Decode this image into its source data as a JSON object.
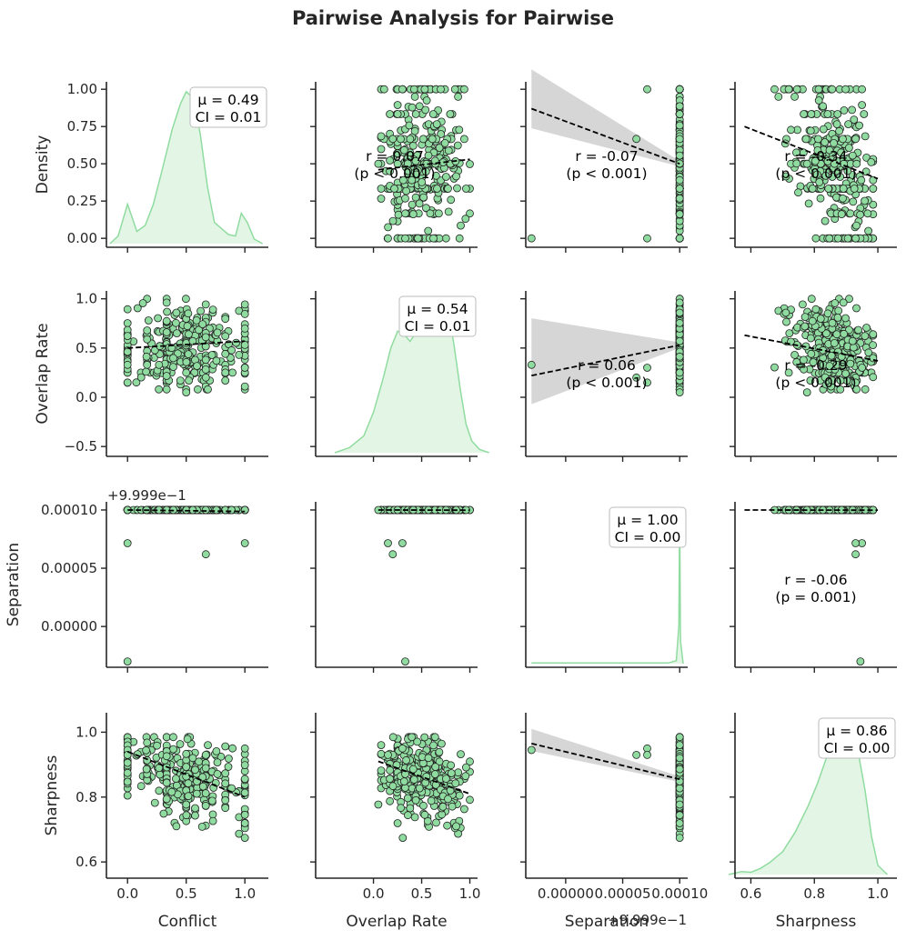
{
  "chart_data": {
    "type": "scatter",
    "title": "Pairwise Analysis for Pairwise",
    "variables": [
      "Conflict",
      "Overlap Rate",
      "Separation",
      "Sharpness"
    ],
    "variable_labels": [
      "Density",
      "Overlap Rate",
      "Separation",
      "Sharpness"
    ],
    "ranges": {
      "Conflict": [
        -0.18,
        1.2
      ],
      "Overlap Rate": [
        -0.6,
        1.08
      ],
      "Separation": [
        -3.5e-05,
        0.000107
      ],
      "Sharpness": [
        0.55,
        1.06
      ]
    },
    "y_ticks": {
      "Density": [
        {
          "v": 0.0,
          "label": "0.00"
        },
        {
          "v": 0.25,
          "label": "0.25"
        },
        {
          "v": 0.5,
          "label": "0.50"
        },
        {
          "v": 0.75,
          "label": "0.75"
        },
        {
          "v": 1.0,
          "label": "1.00"
        }
      ],
      "Overlap Rate": [
        {
          "v": -0.5,
          "label": "−0.5"
        },
        {
          "v": 0.0,
          "label": "0.0"
        },
        {
          "v": 0.5,
          "label": "0.5"
        },
        {
          "v": 1.0,
          "label": "1.0"
        }
      ],
      "Separation": [
        {
          "v": 0.0,
          "label": "0.00000"
        },
        {
          "v": 5e-05,
          "label": "0.00005"
        },
        {
          "v": 0.0001,
          "label": "0.00010"
        }
      ],
      "Sharpness": [
        {
          "v": 0.6,
          "label": "0.6"
        },
        {
          "v": 0.8,
          "label": "0.8"
        },
        {
          "v": 1.0,
          "label": "1.0"
        }
      ]
    },
    "x_ticks": {
      "Conflict": [
        {
          "v": 0.0,
          "label": "0.0"
        },
        {
          "v": 0.5,
          "label": "0.5"
        },
        {
          "v": 1.0,
          "label": "1.0"
        }
      ],
      "Overlap Rate": [
        {
          "v": 0.0,
          "label": "0.0"
        },
        {
          "v": 0.5,
          "label": "0.5"
        },
        {
          "v": 1.0,
          "label": "1.0"
        }
      ],
      "Separation": [
        {
          "v": 0.0,
          "label": "0.00000"
        },
        {
          "v": 5e-05,
          "label": "0.00005"
        },
        {
          "v": 0.0001,
          "label": "0.00010"
        }
      ],
      "Sharpness": [
        {
          "v": 0.6,
          "label": "0.6"
        },
        {
          "v": 0.8,
          "label": "0.8"
        },
        {
          "v": 1.0,
          "label": "1.0"
        }
      ]
    },
    "offset_text": "+9.999e−1",
    "diagonal_stats": [
      {
        "variable": "Conflict",
        "mean_label": "μ = 0.49",
        "ci_label": "CI = 0.01"
      },
      {
        "variable": "Overlap Rate",
        "mean_label": "μ = 0.54",
        "ci_label": "CI = 0.01"
      },
      {
        "variable": "Separation",
        "mean_label": "μ = 1.00",
        "ci_label": "CI = 0.00"
      },
      {
        "variable": "Sharpness",
        "mean_label": "μ = 0.86",
        "ci_label": "CI = 0.00"
      }
    ],
    "correlations": [
      {
        "row": "Conflict",
        "col": "Overlap Rate",
        "r_label": "r = 0.07",
        "p_label": "(p < 0.001)"
      },
      {
        "row": "Conflict",
        "col": "Separation",
        "r_label": "r = -0.07",
        "p_label": "(p < 0.001)"
      },
      {
        "row": "Conflict",
        "col": "Sharpness",
        "r_label": "r = -0.34",
        "p_label": "(p < 0.001)"
      },
      {
        "row": "Overlap Rate",
        "col": "Separation",
        "r_label": "r = 0.06",
        "p_label": "(p < 0.001)"
      },
      {
        "row": "Overlap Rate",
        "col": "Sharpness",
        "r_label": "r = -0.29",
        "p_label": "(p < 0.001)"
      },
      {
        "row": "Separation",
        "col": "Sharpness",
        "r_label": "r = -0.06",
        "p_label": "(p = 0.001)"
      }
    ],
    "regression_lines": [
      {
        "row": "Density",
        "col": "Overlap Rate",
        "x": [
          0.05,
          1.0
        ],
        "y": [
          0.46,
          0.53
        ]
      },
      {
        "row": "Density",
        "col": "Separation",
        "x": [
          -3e-05,
          0.0001
        ],
        "y": [
          0.87,
          0.5
        ]
      },
      {
        "row": "Density",
        "col": "Sharpness",
        "x": [
          0.58,
          1.0
        ],
        "y": [
          0.75,
          0.4
        ]
      },
      {
        "row": "Overlap Rate",
        "col": "Conflict",
        "x": [
          0.0,
          1.0
        ],
        "y": [
          0.5,
          0.57
        ]
      },
      {
        "row": "Overlap Rate",
        "col": "Separation",
        "x": [
          -3e-05,
          0.0001
        ],
        "y": [
          0.22,
          0.53
        ]
      },
      {
        "row": "Overlap Rate",
        "col": "Sharpness",
        "x": [
          0.58,
          1.0
        ],
        "y": [
          0.63,
          0.37
        ]
      },
      {
        "row": "Separation",
        "col": "Conflict",
        "x": [
          0.0,
          1.0
        ],
        "y": [
          0.0001,
          9.87e-05
        ]
      },
      {
        "row": "Separation",
        "col": "Overlap Rate",
        "x": [
          0.05,
          1.0
        ],
        "y": [
          0.0001,
          9.98e-05
        ]
      },
      {
        "row": "Separation",
        "col": "Sharpness",
        "x": [
          0.58,
          1.0
        ],
        "y": [
          0.0001,
          9.98e-05
        ]
      },
      {
        "row": "Sharpness",
        "col": "Conflict",
        "x": [
          0.0,
          1.0
        ],
        "y": [
          0.94,
          0.8
        ]
      },
      {
        "row": "Sharpness",
        "col": "Overlap Rate",
        "x": [
          0.05,
          1.0
        ],
        "y": [
          0.91,
          0.81
        ]
      },
      {
        "row": "Sharpness",
        "col": "Separation",
        "x": [
          -3e-05,
          0.0001
        ],
        "y": [
          0.965,
          0.855
        ]
      }
    ],
    "diagonal_kde": [
      {
        "variable": "Conflict",
        "x": [
          -0.15,
          -0.08,
          0.0,
          0.08,
          0.15,
          0.22,
          0.3,
          0.38,
          0.45,
          0.5,
          0.56,
          0.62,
          0.68,
          0.74,
          0.8,
          0.86,
          0.92,
          0.97,
          1.02,
          1.08,
          1.15
        ],
        "density": [
          0.0,
          0.05,
          0.26,
          0.08,
          0.12,
          0.26,
          0.5,
          0.75,
          0.92,
          1.0,
          0.96,
          0.72,
          0.38,
          0.14,
          0.1,
          0.06,
          0.05,
          0.2,
          0.14,
          0.03,
          0.0
        ]
      },
      {
        "variable": "Overlap Rate",
        "x": [
          -0.4,
          -0.25,
          -0.1,
          0.0,
          0.1,
          0.18,
          0.25,
          0.32,
          0.38,
          0.45,
          0.52,
          0.6,
          0.67,
          0.73,
          0.78,
          0.84,
          0.9,
          0.96,
          1.02,
          1.1,
          1.2
        ],
        "density": [
          0.0,
          0.03,
          0.1,
          0.24,
          0.44,
          0.62,
          0.72,
          0.7,
          0.66,
          0.72,
          0.76,
          0.78,
          0.82,
          0.9,
          0.84,
          0.62,
          0.38,
          0.17,
          0.07,
          0.02,
          0.0
        ]
      },
      {
        "variable": "Separation",
        "x": [
          -3e-05,
          9e-05,
          9.7e-05,
          9.93e-05,
          0.0001,
          0.0001007,
          0.000103
        ],
        "density": [
          0.004,
          0.004,
          0.02,
          0.25,
          1.0,
          0.15,
          0.0
        ]
      },
      {
        "variable": "Sharpness",
        "x": [
          0.53,
          0.57,
          0.6,
          0.63,
          0.66,
          0.7,
          0.74,
          0.78,
          0.81,
          0.84,
          0.87,
          0.9,
          0.93,
          0.96,
          0.98,
          1.0,
          1.03
        ],
        "density": [
          0.0,
          0.02,
          0.015,
          0.04,
          0.08,
          0.15,
          0.28,
          0.45,
          0.6,
          0.78,
          0.95,
          1.0,
          0.9,
          0.55,
          0.25,
          0.06,
          0.0
        ]
      }
    ],
    "colors": {
      "points": "#90dca0",
      "point_edge": "#222222",
      "kde_fill": "#e3f6e6",
      "kde_line": "#90dca0",
      "ci_band": "#d6d6d6",
      "axes": "#262626"
    }
  }
}
